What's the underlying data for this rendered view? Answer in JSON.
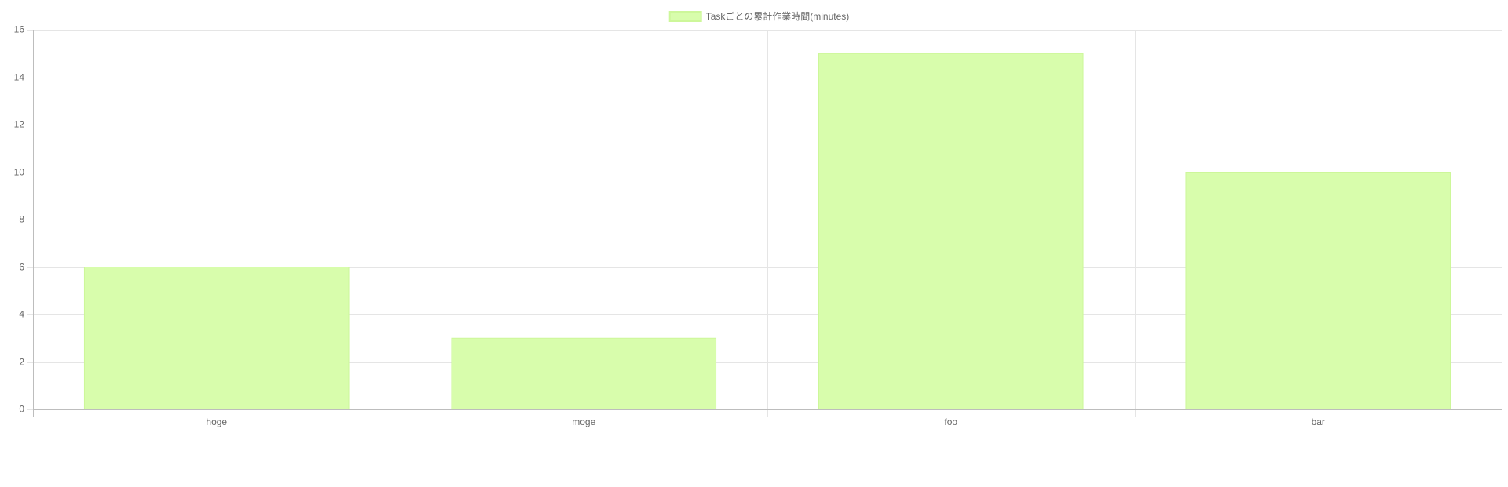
{
  "chart_data": {
    "type": "bar",
    "categories": [
      "hoge",
      "moge",
      "foo",
      "bar"
    ],
    "series": [
      {
        "name": "Taskごとの累計作業時間(minutes)",
        "values": [
          6,
          3,
          15,
          10
        ]
      }
    ],
    "ylim": [
      0,
      16
    ],
    "y_ticks": [
      0,
      2,
      4,
      6,
      8,
      10,
      12,
      14,
      16
    ],
    "grid": true,
    "legend_position": "top-center",
    "colors": {
      "bar_fill": "#d8fdac",
      "bar_border": "#cdf79a",
      "grid": "#e5e5e5",
      "axis": "#bdbdbd",
      "text": "#666666"
    }
  }
}
